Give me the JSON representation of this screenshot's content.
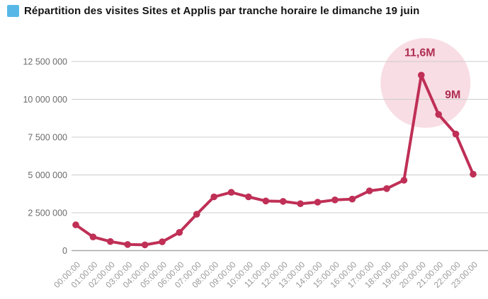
{
  "title": {
    "text": "Répartition des visites Sites et Applis par tranche horaire le dimanche 19 juin",
    "marker_color": "#57b8e8"
  },
  "chart_data": {
    "type": "line",
    "title": "Répartition des visites Sites et Applis par tranche horaire le dimanche 19 juin",
    "x": [
      "00:00:00",
      "01:00:00",
      "02:00:00",
      "03:00:00",
      "04:00:00",
      "05:00:00",
      "06:00:00",
      "07:00:00",
      "08:00:00",
      "09:00:00",
      "10:00:00",
      "11:00:00",
      "12:00:00",
      "13:00:00",
      "14:00:00",
      "15:00:00",
      "16:00:00",
      "17:00:00",
      "18:00:00",
      "19:00:00",
      "20:00:00",
      "21:00:00",
      "22:00:00",
      "23:00:00"
    ],
    "series": [
      {
        "name": "Visites Sites et Applis",
        "values": [
          1700000,
          900000,
          600000,
          400000,
          380000,
          580000,
          1200000,
          2400000,
          3550000,
          3850000,
          3550000,
          3280000,
          3250000,
          3100000,
          3200000,
          3350000,
          3400000,
          3950000,
          4100000,
          4650000,
          11600000,
          9000000,
          7700000,
          5050000
        ]
      }
    ],
    "xlabel": "",
    "ylabel": "",
    "ylim": [
      0,
      12500000
    ],
    "yticks": [
      0,
      2500000,
      5000000,
      7500000,
      10000000,
      12500000
    ],
    "ytick_labels": [
      "0",
      "2 500 000",
      "5 000 000",
      "7 500 000",
      "10 000 000",
      "12 500 000"
    ],
    "grid": true,
    "legend_position": "none",
    "annotations": [
      {
        "text": "11,6M",
        "x_index": 20,
        "value": 11600000
      },
      {
        "text": "9M",
        "x_index": 21,
        "value": 9000000
      }
    ],
    "highlight": {
      "x_index": 20,
      "shape": "circle"
    },
    "colors": {
      "line": "#bf2f56",
      "point": "#bf2f56",
      "highlight_bubble": "#f8dde4",
      "annotation_text": "#b02e52",
      "gridline": "#cccccc",
      "baseline": "#a8a8a8",
      "ytick_text": "#6b6b6b",
      "xtick_text": "#999999"
    }
  }
}
